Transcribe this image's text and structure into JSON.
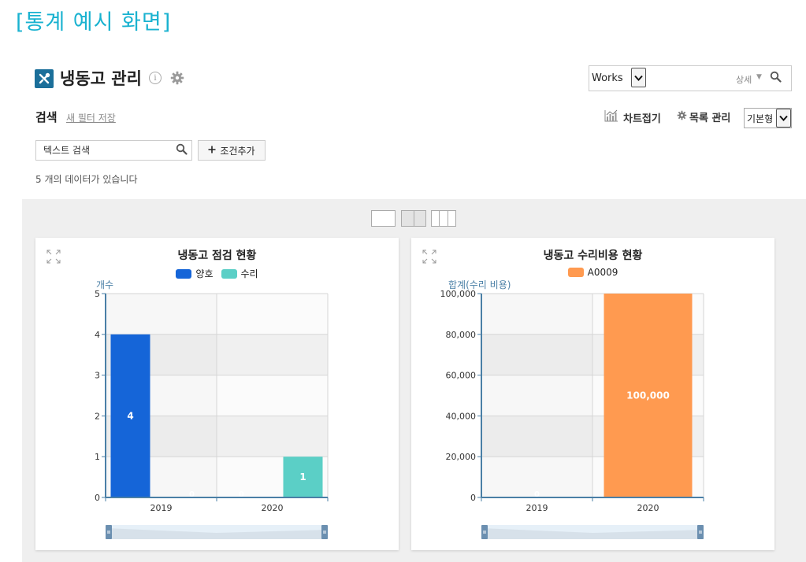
{
  "slide_title": "[통계 예시 화면]",
  "header": {
    "title": "냉동고 관리",
    "info_glyph": "i",
    "icons": [
      "tools-icon",
      "info-icon",
      "gear-icon"
    ]
  },
  "top_search": {
    "scope_value": "Works",
    "detail_label": "상세"
  },
  "search": {
    "heading": "검색",
    "save_filter_label": "새 필터 저장",
    "text_search_placeholder": "텍스트 검색",
    "add_condition_label": "조건추가"
  },
  "toolbar": {
    "chart_toggle_label": "차트접기",
    "list_manage_label": "목록 관리",
    "view_mode_value": "기본형"
  },
  "result_count": "5 개의 데이터가 있습니다",
  "colors": {
    "accent": "#19b2d0",
    "app_icon": "#1b6f9a",
    "series_good": "#1565d8",
    "series_repair": "#5bcfc6",
    "series_cost": "#ff9a50",
    "axis_blue": "#4a7fa6"
  },
  "chart_data": [
    {
      "type": "bar",
      "title": "냉동고 점검 현황",
      "ylabel": "개수",
      "categories": [
        "2019",
        "2020"
      ],
      "series": [
        {
          "name": "양호",
          "values": [
            4,
            0
          ],
          "color": "#1565d8"
        },
        {
          "name": "수리",
          "values": [
            0,
            1
          ],
          "color": "#5bcfc6"
        }
      ],
      "ylim": [
        0,
        5
      ],
      "yticks": [
        0,
        1,
        2,
        3,
        4,
        5
      ],
      "ytick_labels": [
        "0",
        "1",
        "2",
        "3",
        "4",
        "5"
      ],
      "grid": true,
      "legend": "top-center",
      "data_labels": true
    },
    {
      "type": "bar",
      "title": "냉동고 수리비용 현황",
      "ylabel": "합계(수리 비용)",
      "categories": [
        "2019",
        "2020"
      ],
      "series": [
        {
          "name": "A0009",
          "values": [
            0,
            100000
          ],
          "color": "#ff9a50"
        }
      ],
      "ylim": [
        0,
        100000
      ],
      "yticks": [
        0,
        20000,
        40000,
        60000,
        80000,
        100000
      ],
      "ytick_labels": [
        "0",
        "20,000",
        "40,000",
        "60,000",
        "80,000",
        "100,000"
      ],
      "value_labels": [
        "0",
        "100,000"
      ],
      "grid": true,
      "legend": "top-center",
      "data_labels": true
    }
  ]
}
